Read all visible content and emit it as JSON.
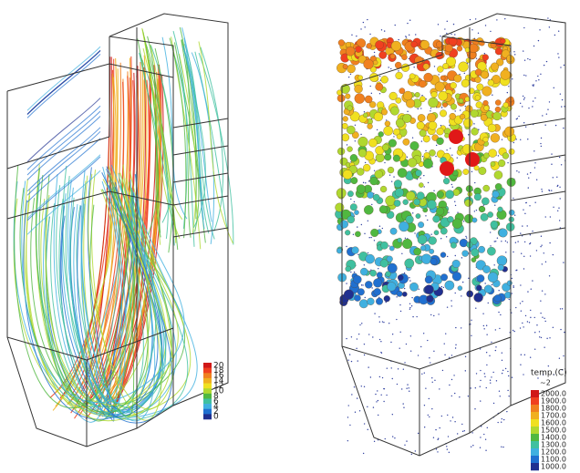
{
  "left_panel": {
    "colorbar": {
      "labels": [
        "20",
        "18",
        "16",
        "14",
        "12",
        "10",
        "8",
        "6",
        "4",
        "2",
        "0"
      ]
    }
  },
  "right_panel": {
    "colorbar": {
      "title": "temp.(C)",
      "subtitle": "~2",
      "labels": [
        "2000.0",
        "1900.0",
        "1800.0",
        "1700.0",
        "1600.0",
        "1500.0",
        "1400.0",
        "1300.0",
        "1200.0",
        "1100.0",
        "1000.0"
      ]
    }
  }
}
